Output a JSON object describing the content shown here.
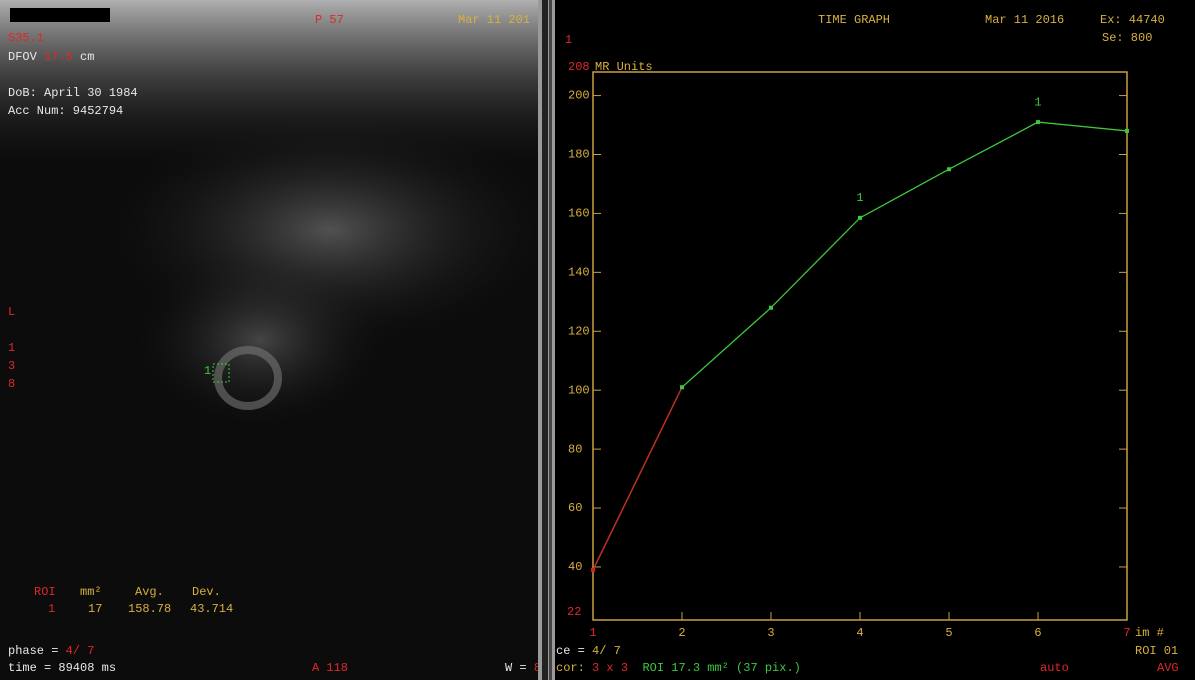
{
  "left_panel": {
    "series_id": "S35.1",
    "dfov_label": "DFOV",
    "dfov_value": "17.5",
    "dfov_unit": "cm",
    "dob": "DoB: April 30 1984",
    "acc_num": "Acc Num: 9452794",
    "position": "P 57",
    "date": "Mar 11 201",
    "orientation": "L",
    "side_digits": [
      "1",
      "3",
      "8"
    ],
    "roi_marker": "1",
    "roi_table": {
      "headers": [
        "ROI",
        "mm²",
        "Avg.",
        "Dev."
      ],
      "row": [
        "1",
        "17",
        "158.78",
        "43.714"
      ]
    },
    "phase_label": "phase = ",
    "phase_value": "4/ 7",
    "time": "time = 89408 ms",
    "anterior": "A 118",
    "window_label": "W = ",
    "window_value": "8"
  },
  "right_panel": {
    "corner": "1",
    "date": "Mar 11 2016",
    "exam": "Ex: 44740",
    "series": "Se: 800",
    "phase_label": "ce = ",
    "phase_value": "4/ 7",
    "cor_label": "cor: ",
    "cor_value": "3 x 3",
    "roi_info": "ROI 17.3 mm² (37 pix.)",
    "mode": "auto",
    "roi_id": "ROI 01",
    "stat": "AVG"
  },
  "chart_data": {
    "type": "line",
    "title": "TIME GRAPH",
    "y_label": "MR Units",
    "x_label": "im #",
    "x": [
      1,
      2,
      3,
      4,
      5,
      6,
      7
    ],
    "values": [
      39,
      101,
      128,
      158.5,
      175,
      191,
      188
    ],
    "color": "#3cc83c",
    "first_segment_color": "#d02020",
    "xlim": [
      1,
      7
    ],
    "ylim": [
      22,
      208
    ],
    "xticks": [
      1,
      2,
      3,
      4,
      5,
      6,
      7
    ],
    "yticks": [
      40,
      60,
      80,
      100,
      120,
      140,
      160,
      180,
      200
    ],
    "annotations": [
      {
        "text": "1",
        "x": 4
      },
      {
        "text": "1",
        "x": 6
      }
    ]
  }
}
